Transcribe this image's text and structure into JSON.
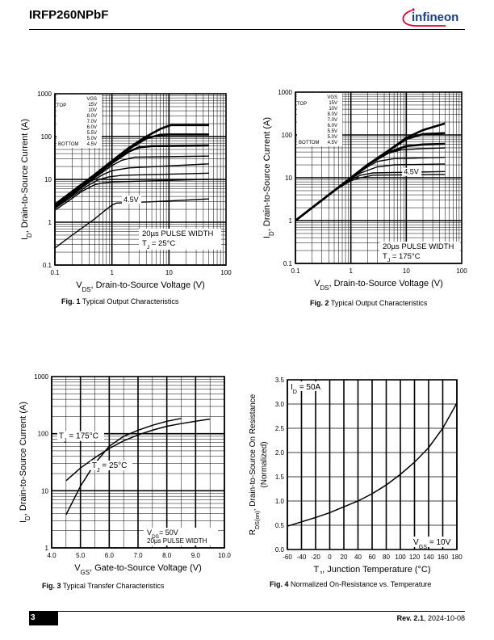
{
  "header": {
    "part_number": "IRFP260NPbF",
    "logo_text": "infineon",
    "brand_color": "#e4032e"
  },
  "footer": {
    "page_number": "3",
    "revision_label": "Rev. 2.1",
    "date": ", 2024-10-08"
  },
  "captions": [
    {
      "fig": "Fig. 1",
      "text": " Typical Output Characteristics"
    },
    {
      "fig": "Fig. 2",
      "text": " Typical Output Characteristics"
    },
    {
      "fig": "Fig. 3",
      "text": " Typical Transfer Characteristics"
    },
    {
      "fig": "Fig. 4",
      "text": " Normalized On-Resistance vs. Temperature"
    }
  ],
  "chart_data": [
    {
      "type": "line",
      "xscale": "log",
      "yscale": "log",
      "xlim": [
        0.1,
        100
      ],
      "ylim": [
        0.1,
        1000
      ],
      "xticks": [
        "0.1",
        "1",
        "10",
        "100"
      ],
      "yticks": [
        "0.1",
        "1",
        "10",
        "100",
        "1000"
      ],
      "xlabel": {
        "main": "V",
        "sub": "DS",
        "rest": ", Drain-to-Source Voltage (V)"
      },
      "ylabel": {
        "main": "I",
        "sub": "D",
        "rest": ", Drain-to-Source Current (A)"
      },
      "legend": {
        "header": "VGS",
        "top_label": "TOP",
        "bottom_label": "BOTTOM",
        "values": [
          "15V",
          "10V",
          "8.0V",
          "7.0V",
          "6.0V",
          "5.5V",
          "5.0V",
          "4.5V"
        ]
      },
      "annotation_curve": "4.5V",
      "notes": [
        "20µs PULSE WIDTH",
        "T",
        "J",
        " = 25°C"
      ],
      "series": [
        {
          "vgs": 15,
          "points": [
            [
              0.1,
              2.6
            ],
            [
              0.2,
              5.2
            ],
            [
              0.5,
              13
            ],
            [
              1,
              27
            ],
            [
              2,
              55
            ],
            [
              4,
              100
            ],
            [
              7,
              150
            ],
            [
              10,
              180
            ],
            [
              11,
              185
            ],
            [
              50,
              185
            ]
          ]
        },
        {
          "vgs": 10,
          "points": [
            [
              0.1,
              2.5
            ],
            [
              0.2,
              5
            ],
            [
              0.5,
              12.5
            ],
            [
              1,
              26
            ],
            [
              2,
              52
            ],
            [
              4,
              90
            ],
            [
              7,
              110
            ],
            [
              10,
              112
            ],
            [
              50,
              112
            ]
          ]
        },
        {
          "vgs": 8,
          "points": [
            [
              0.1,
              2.4
            ],
            [
              0.2,
              4.8
            ],
            [
              0.5,
              12
            ],
            [
              1,
              24
            ],
            [
              2,
              45
            ],
            [
              3,
              56
            ],
            [
              5,
              60
            ],
            [
              50,
              62
            ]
          ]
        },
        {
          "vgs": 7,
          "points": [
            [
              0.1,
              2.3
            ],
            [
              0.2,
              4.6
            ],
            [
              0.5,
              11
            ],
            [
              1,
              21
            ],
            [
              1.5,
              28
            ],
            [
              2.5,
              33
            ],
            [
              50,
              35
            ]
          ]
        },
        {
          "vgs": 6,
          "points": [
            [
              0.1,
              2.2
            ],
            [
              0.2,
              4.3
            ],
            [
              0.4,
              8.5
            ],
            [
              0.7,
              13
            ],
            [
              1,
              16
            ],
            [
              2,
              18.5
            ],
            [
              50,
              23
            ]
          ]
        },
        {
          "vgs": 5.5,
          "points": [
            [
              0.1,
              2.1
            ],
            [
              0.2,
              4
            ],
            [
              0.4,
              7.5
            ],
            [
              0.6,
              10
            ],
            [
              0.9,
              11.5
            ],
            [
              1.5,
              12.5
            ],
            [
              50,
              14
            ]
          ]
        },
        {
          "vgs": 5,
          "points": [
            [
              0.1,
              1.9
            ],
            [
              0.2,
              3.6
            ],
            [
              0.3,
              5.3
            ],
            [
              0.5,
              7.5
            ],
            [
              0.7,
              8.3
            ],
            [
              1,
              8.7
            ],
            [
              50,
              10
            ]
          ]
        },
        {
          "vgs": 4.5,
          "points": [
            [
              0.1,
              0.25
            ],
            [
              0.2,
              0.5
            ],
            [
              0.5,
              1.2
            ],
            [
              0.8,
              2
            ],
            [
              1,
              2.5
            ],
            [
              1.2,
              2.8
            ],
            [
              5,
              3
            ],
            [
              50,
              3.5
            ]
          ]
        }
      ]
    },
    {
      "type": "line",
      "xscale": "log",
      "yscale": "log",
      "xlim": [
        0.1,
        100
      ],
      "ylim": [
        0.1,
        1000
      ],
      "xticks": [
        "0.1",
        "1",
        "10",
        "100"
      ],
      "yticks": [
        "0.1",
        "1",
        "10",
        "100",
        "1000"
      ],
      "xlabel": {
        "main": "V",
        "sub": "DS",
        "rest": ", Drain-to-Source Voltage (V)"
      },
      "ylabel": {
        "main": "I",
        "sub": "D",
        "rest": ", Drain-to-Source Current (A)"
      },
      "legend": {
        "header": "VGS",
        "top_label": "TOP",
        "bottom_label": "BOTTOM",
        "values": [
          "15V",
          "10V",
          "8.0V",
          "7.0V",
          "6.0V",
          "5.5V",
          "5.0V",
          "4.5V"
        ]
      },
      "annotation_curve": "4.5V",
      "notes": [
        "20µs PULSE WIDTH",
        "T",
        "J",
        " = 175°C"
      ],
      "series": [
        {
          "vgs": 15,
          "points": [
            [
              0.1,
              1
            ],
            [
              0.2,
              2
            ],
            [
              0.5,
              5
            ],
            [
              1,
              10
            ],
            [
              2,
              20
            ],
            [
              5,
              45
            ],
            [
              10,
              85
            ],
            [
              20,
              130
            ],
            [
              50,
              185
            ]
          ]
        },
        {
          "vgs": 10,
          "points": [
            [
              0.1,
              1
            ],
            [
              0.2,
              2
            ],
            [
              0.5,
              5
            ],
            [
              1,
              10
            ],
            [
              2,
              20
            ],
            [
              5,
              45
            ],
            [
              10,
              80
            ],
            [
              20,
              105
            ],
            [
              50,
              110
            ]
          ]
        },
        {
          "vgs": 8,
          "points": [
            [
              0.1,
              1
            ],
            [
              0.2,
              2
            ],
            [
              0.5,
              5
            ],
            [
              1,
              10
            ],
            [
              2,
              20
            ],
            [
              5,
              40
            ],
            [
              10,
              55
            ],
            [
              20,
              60
            ],
            [
              50,
              62
            ]
          ]
        },
        {
          "vgs": 7,
          "points": [
            [
              0.1,
              1
            ],
            [
              0.2,
              2
            ],
            [
              0.5,
              5
            ],
            [
              1,
              10
            ],
            [
              2,
              19
            ],
            [
              4,
              35
            ],
            [
              8,
              45
            ],
            [
              20,
              48
            ],
            [
              50,
              50
            ]
          ]
        },
        {
          "vgs": 6,
          "points": [
            [
              0.1,
              1
            ],
            [
              0.2,
              2
            ],
            [
              0.5,
              5
            ],
            [
              1,
              9.8
            ],
            [
              2,
              18
            ],
            [
              3,
              24
            ],
            [
              6,
              28
            ],
            [
              50,
              30
            ]
          ]
        },
        {
          "vgs": 5.5,
          "points": [
            [
              0.1,
              1
            ],
            [
              0.2,
              2
            ],
            [
              0.5,
              5
            ],
            [
              1,
              9.5
            ],
            [
              1.5,
              13
            ],
            [
              3,
              18
            ],
            [
              6,
              20
            ],
            [
              50,
              21
            ]
          ]
        },
        {
          "vgs": 5,
          "points": [
            [
              0.1,
              1
            ],
            [
              0.2,
              2
            ],
            [
              0.5,
              5
            ],
            [
              1,
              9
            ],
            [
              1.5,
              11.5
            ],
            [
              2.5,
              13
            ],
            [
              50,
              14
            ]
          ]
        },
        {
          "vgs": 4.5,
          "points": [
            [
              0.1,
              1
            ],
            [
              0.2,
              2
            ],
            [
              0.5,
              5
            ],
            [
              1,
              8.5
            ],
            [
              1.5,
              10
            ],
            [
              2.5,
              11.5
            ],
            [
              50,
              12
            ]
          ]
        }
      ]
    },
    {
      "type": "line",
      "xscale": "linear",
      "yscale": "log",
      "xlim": [
        4.0,
        10.0
      ],
      "ylim": [
        1,
        1000
      ],
      "xticks": [
        "4.0",
        "5.0",
        "6.0",
        "7.0",
        "8.0",
        "9.0",
        "10.0"
      ],
      "yticks": [
        "1",
        "10",
        "100",
        "1000"
      ],
      "xlabel": {
        "main": "V",
        "sub": "GS",
        "rest": ", Gate-to-Source Voltage (V)"
      },
      "ylabel": {
        "main": "I",
        "sub": "D",
        "rest": ", Drain-to-Source Current (A)"
      },
      "notes": [
        "V",
        "DS",
        "= 50V",
        "20µs PULSE WIDTH"
      ],
      "series": [
        {
          "name": "T_J = 175°C",
          "label_main": "T",
          "label_sub": "J",
          "label_rest": " = 175°C",
          "points": [
            [
              4.5,
              15
            ],
            [
              5,
              25
            ],
            [
              5.5,
              38
            ],
            [
              6,
              55
            ],
            [
              6.5,
              75
            ],
            [
              7,
              95
            ],
            [
              7.5,
              115
            ],
            [
              8,
              135
            ],
            [
              8.5,
              150
            ],
            [
              9,
              165
            ],
            [
              9.5,
              180
            ]
          ]
        },
        {
          "name": "T_J = 25°C",
          "label_main": "T",
          "label_sub": "J",
          "label_rest": " = 25°C",
          "points": [
            [
              4.5,
              3.8
            ],
            [
              5,
              12
            ],
            [
              5.5,
              30
            ],
            [
              6,
              60
            ],
            [
              6.5,
              90
            ],
            [
              7,
              115
            ],
            [
              7.5,
              140
            ],
            [
              8,
              165
            ],
            [
              8.5,
              185
            ]
          ]
        }
      ]
    },
    {
      "type": "line",
      "xscale": "linear",
      "yscale": "linear",
      "xlim": [
        -60,
        180
      ],
      "ylim": [
        0.0,
        3.5
      ],
      "xticks": [
        "-60",
        "-40",
        "-20",
        "0",
        "20",
        "40",
        "60",
        "80",
        "100",
        "120",
        "140",
        "160",
        "180"
      ],
      "yticks": [
        "0.0",
        "0.5",
        "1.0",
        "1.5",
        "2.0",
        "2.5",
        "3.0",
        "3.5"
      ],
      "xlabel": {
        "main": "T",
        "sub": "J",
        "rest": ", Junction Temperature (°C)"
      },
      "ylabel_lines": [
        "R",
        "DS(on)",
        ", Drain-to-Source On Resistance",
        "(Normalized)"
      ],
      "notes": [
        "I",
        "D",
        " = 50A",
        "V",
        "GS",
        " = 10V"
      ],
      "series": [
        {
          "points": [
            [
              -60,
              0.48
            ],
            [
              -40,
              0.57
            ],
            [
              -20,
              0.66
            ],
            [
              0,
              0.76
            ],
            [
              20,
              0.88
            ],
            [
              40,
              1.0
            ],
            [
              60,
              1.15
            ],
            [
              80,
              1.33
            ],
            [
              100,
              1.55
            ],
            [
              120,
              1.8
            ],
            [
              140,
              2.1
            ],
            [
              160,
              2.5
            ],
            [
              180,
              3.02
            ]
          ]
        }
      ]
    }
  ]
}
